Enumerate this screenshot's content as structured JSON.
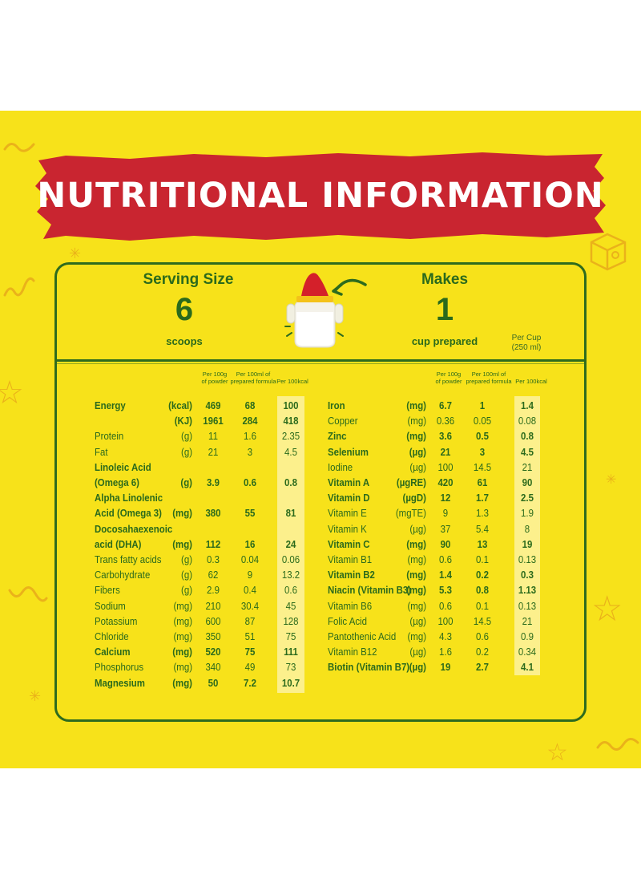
{
  "banner": {
    "title": "NUTRITIONAL INFORMATION"
  },
  "serving": {
    "title": "Serving Size",
    "value": "6",
    "unit": "scoops"
  },
  "makes": {
    "title": "Makes",
    "value": "1",
    "unit": "cup prepared"
  },
  "per_cup": {
    "line1": "Per Cup",
    "line2": "(250 ml)"
  },
  "column_headers": {
    "per100g": [
      "Per 100g",
      "of powder"
    ],
    "per100ml": [
      "Per 100ml of",
      "prepared formula"
    ],
    "per100kcal": "Per 100kcal"
  },
  "colors": {
    "background": "#f7e21a",
    "banner": "#c92530",
    "text": "#2b6a1c",
    "border": "#2e6b1e",
    "highlight": "#fcf08c"
  },
  "icons": [
    "feeding-bottle-icon",
    "arrow-icon",
    "star-icon",
    "squiggle-icon",
    "toy-block-icon"
  ],
  "left_rows": [
    {
      "name": "Energy",
      "unit": "(kcal)",
      "v1": "469",
      "v2": "68",
      "v3": "100",
      "bold": true
    },
    {
      "name": "",
      "unit": "(KJ)",
      "v1": "1961",
      "v2": "284",
      "v3": "418",
      "bold": true
    },
    {
      "name": "Protein",
      "unit": "(g)",
      "v1": "11",
      "v2": "1.6",
      "v3": "2.35",
      "bold": false
    },
    {
      "name": "Fat",
      "unit": "(g)",
      "v1": "21",
      "v2": "3",
      "v3": "4.5",
      "bold": false
    },
    {
      "name": "Linoleic Acid",
      "unit": "",
      "v1": "",
      "v2": "",
      "v3": "",
      "bold": true
    },
    {
      "name": "(Omega 6)",
      "unit": "(g)",
      "v1": "3.9",
      "v2": "0.6",
      "v3": "0.8",
      "bold": true
    },
    {
      "name": "Alpha Linolenic",
      "unit": "",
      "v1": "",
      "v2": "",
      "v3": "",
      "bold": true
    },
    {
      "name": "Acid (Omega 3)",
      "unit": "(mg)",
      "v1": "380",
      "v2": "55",
      "v3": "81",
      "bold": true
    },
    {
      "name": "Docosahaexenoic",
      "unit": "",
      "v1": "",
      "v2": "",
      "v3": "",
      "bold": true
    },
    {
      "name": "acid (DHA)",
      "unit": "(mg)",
      "v1": "112",
      "v2": "16",
      "v3": "24",
      "bold": true
    },
    {
      "name": "Trans fatty acids",
      "unit": "(g)",
      "v1": "0.3",
      "v2": "0.04",
      "v3": "0.06",
      "bold": false
    },
    {
      "name": "Carbohydrate",
      "unit": "(g)",
      "v1": "62",
      "v2": "9",
      "v3": "13.2",
      "bold": false
    },
    {
      "name": " Fibers",
      "unit": "(g)",
      "v1": "2.9",
      "v2": "0.4",
      "v3": "0.6",
      "bold": false
    },
    {
      "name": "Sodium",
      "unit": "(mg)",
      "v1": "210",
      "v2": "30.4",
      "v3": "45",
      "bold": false
    },
    {
      "name": "Potassium",
      "unit": "(mg)",
      "v1": "600",
      "v2": "87",
      "v3": "128",
      "bold": false
    },
    {
      "name": "Chloride",
      "unit": "(mg)",
      "v1": "350",
      "v2": "51",
      "v3": "75",
      "bold": false
    },
    {
      "name": "Calcium",
      "unit": "(mg)",
      "v1": "520",
      "v2": "75",
      "v3": "111",
      "bold": true
    },
    {
      "name": "Phosphorus",
      "unit": "(mg)",
      "v1": "340",
      "v2": "49",
      "v3": "73",
      "bold": false
    },
    {
      "name": "Magnesium",
      "unit": "(mg)",
      "v1": "50",
      "v2": "7.2",
      "v3": "10.7",
      "bold": true
    }
  ],
  "right_rows": [
    {
      "name": "Iron",
      "unit": "(mg)",
      "v1": "6.7",
      "v2": "1",
      "v3": "1.4",
      "bold": true
    },
    {
      "name": "Copper",
      "unit": "(mg)",
      "v1": "0.36",
      "v2": "0.05",
      "v3": "0.08",
      "bold": false
    },
    {
      "name": "Zinc",
      "unit": "(mg)",
      "v1": "3.6",
      "v2": "0.5",
      "v3": "0.8",
      "bold": true
    },
    {
      "name": "Selenium",
      "unit": "(µg)",
      "v1": "21",
      "v2": "3",
      "v3": "4.5",
      "bold": true
    },
    {
      "name": "Iodine",
      "unit": "(µg)",
      "v1": "100",
      "v2": "14.5",
      "v3": "21",
      "bold": false
    },
    {
      "name": "Vitamin A",
      "unit": "(µgRE)",
      "v1": "420",
      "v2": "61",
      "v3": "90",
      "bold": true
    },
    {
      "name": "Vitamin D",
      "unit": "(µgD)",
      "v1": "12",
      "v2": "1.7",
      "v3": "2.5",
      "bold": true
    },
    {
      "name": "Vitamin E",
      "unit": "(mgTE)",
      "v1": "9",
      "v2": "1.3",
      "v3": "1.9",
      "bold": false
    },
    {
      "name": "Vitamin K",
      "unit": "(µg)",
      "v1": "37",
      "v2": "5.4",
      "v3": "8",
      "bold": false
    },
    {
      "name": "Vitamin C",
      "unit": "(mg)",
      "v1": "90",
      "v2": "13",
      "v3": "19",
      "bold": true
    },
    {
      "name": "Vitamin B1",
      "unit": "(mg)",
      "v1": "0.6",
      "v2": "0.1",
      "v3": "0.13",
      "bold": false
    },
    {
      "name": "Vitamin B2",
      "unit": "(mg)",
      "v1": "1.4",
      "v2": "0.2",
      "v3": "0.3",
      "bold": true
    },
    {
      "name": "Niacin (Vitamin B3)",
      "unit": "(mg)",
      "v1": "5.3",
      "v2": "0.8",
      "v3": "1.13",
      "bold": true
    },
    {
      "name": "Vitamin B6",
      "unit": "(mg)",
      "v1": "0.6",
      "v2": "0.1",
      "v3": "0.13",
      "bold": false
    },
    {
      "name": "Folic Acid",
      "unit": "(µg)",
      "v1": "100",
      "v2": "14.5",
      "v3": "21",
      "bold": false
    },
    {
      "name": "Pantothenic Acid",
      "unit": "(mg)",
      "v1": "4.3",
      "v2": "0.6",
      "v3": "0.9",
      "bold": false
    },
    {
      "name": "Vitamin  B12",
      "unit": "(µg)",
      "v1": "1.6",
      "v2": "0.2",
      "v3": "0.34",
      "bold": false
    },
    {
      "name": "Biotin (Vitamin B7)",
      "unit": "(µg)",
      "v1": "19",
      "v2": "2.7",
      "v3": "4.1",
      "bold": true
    }
  ]
}
